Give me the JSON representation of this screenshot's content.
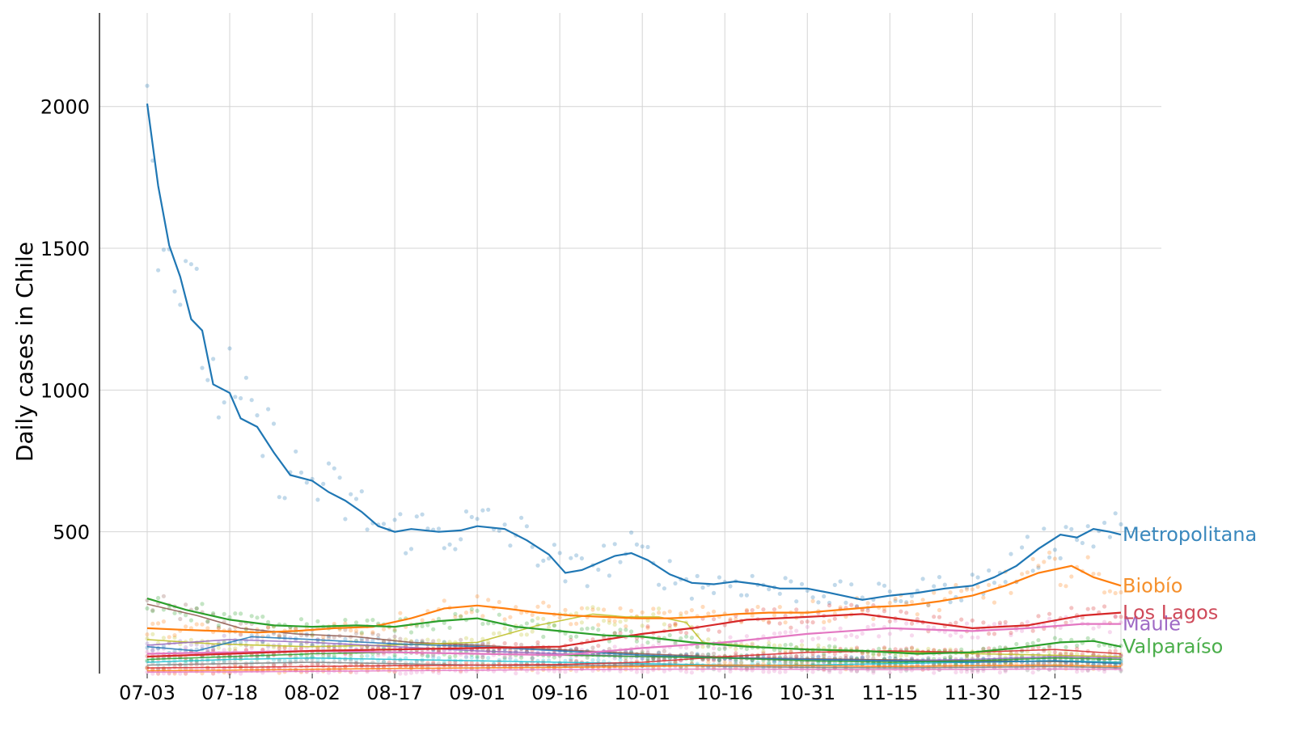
{
  "chart_data": {
    "type": "line",
    "ylabel": "Daily cases in Chile",
    "xlabel": "",
    "x_start": "07-03",
    "x_end": "12-27",
    "xticks": [
      "07-03",
      "07-18",
      "08-02",
      "08-17",
      "09-01",
      "09-16",
      "10-01",
      "10-16",
      "10-31",
      "11-15",
      "11-30",
      "12-15"
    ],
    "yticks": [
      500,
      1000,
      1500,
      2000
    ],
    "ylim": [
      0,
      2330
    ],
    "grid": true,
    "series": [
      {
        "name": "Metropolitana",
        "color": "#1f77b4",
        "label_color": "#3a88bd",
        "points": [
          [
            "07-03",
            2010
          ],
          [
            "07-05",
            1720
          ],
          [
            "07-07",
            1510
          ],
          [
            "07-09",
            1400
          ],
          [
            "07-11",
            1250
          ],
          [
            "07-13",
            1210
          ],
          [
            "07-15",
            1020
          ],
          [
            "07-18",
            990
          ],
          [
            "07-20",
            900
          ],
          [
            "07-23",
            870
          ],
          [
            "07-26",
            780
          ],
          [
            "07-29",
            700
          ],
          [
            "08-02",
            680
          ],
          [
            "08-05",
            640
          ],
          [
            "08-08",
            610
          ],
          [
            "08-11",
            570
          ],
          [
            "08-14",
            520
          ],
          [
            "08-17",
            500
          ],
          [
            "08-20",
            510
          ],
          [
            "08-25",
            500
          ],
          [
            "08-29",
            505
          ],
          [
            "09-01",
            520
          ],
          [
            "09-06",
            510
          ],
          [
            "09-10",
            470
          ],
          [
            "09-14",
            420
          ],
          [
            "09-17",
            355
          ],
          [
            "09-20",
            365
          ],
          [
            "09-23",
            390
          ],
          [
            "09-26",
            415
          ],
          [
            "09-29",
            425
          ],
          [
            "10-02",
            400
          ],
          [
            "10-06",
            350
          ],
          [
            "10-10",
            320
          ],
          [
            "10-14",
            315
          ],
          [
            "10-18",
            325
          ],
          [
            "10-22",
            315
          ],
          [
            "10-26",
            300
          ],
          [
            "10-31",
            300
          ],
          [
            "11-04",
            285
          ],
          [
            "11-10",
            260
          ],
          [
            "11-15",
            275
          ],
          [
            "11-20",
            285
          ],
          [
            "11-25",
            300
          ],
          [
            "11-30",
            310
          ],
          [
            "12-04",
            340
          ],
          [
            "12-08",
            380
          ],
          [
            "12-12",
            440
          ],
          [
            "12-16",
            490
          ],
          [
            "12-19",
            480
          ],
          [
            "12-22",
            510
          ],
          [
            "12-25",
            500
          ],
          [
            "12-27",
            490
          ]
        ]
      },
      {
        "name": "Biobío",
        "color": "#ff7f0e",
        "label_color": "#f5902c",
        "points": [
          [
            "07-03",
            160
          ],
          [
            "07-09",
            155
          ],
          [
            "07-16",
            150
          ],
          [
            "07-23",
            145
          ],
          [
            "07-30",
            150
          ],
          [
            "08-06",
            160
          ],
          [
            "08-13",
            165
          ],
          [
            "08-20",
            195
          ],
          [
            "08-26",
            230
          ],
          [
            "09-01",
            240
          ],
          [
            "09-06",
            230
          ],
          [
            "09-12",
            215
          ],
          [
            "09-18",
            205
          ],
          [
            "09-24",
            200
          ],
          [
            "09-30",
            195
          ],
          [
            "10-06",
            195
          ],
          [
            "10-12",
            200
          ],
          [
            "10-18",
            210
          ],
          [
            "10-24",
            215
          ],
          [
            "10-31",
            215
          ],
          [
            "11-06",
            225
          ],
          [
            "11-12",
            235
          ],
          [
            "11-18",
            240
          ],
          [
            "11-24",
            255
          ],
          [
            "11-30",
            275
          ],
          [
            "12-06",
            310
          ],
          [
            "12-12",
            355
          ],
          [
            "12-18",
            380
          ],
          [
            "12-22",
            340
          ],
          [
            "12-27",
            310
          ]
        ]
      },
      {
        "name": "Maule",
        "color": "#e377c2",
        "label_color": "#9f6ac5",
        "points": [
          [
            "07-03",
            70
          ],
          [
            "07-18",
            75
          ],
          [
            "08-02",
            80
          ],
          [
            "08-17",
            75
          ],
          [
            "09-01",
            70
          ],
          [
            "09-16",
            65
          ],
          [
            "10-01",
            90
          ],
          [
            "10-16",
            110
          ],
          [
            "10-31",
            140
          ],
          [
            "11-15",
            160
          ],
          [
            "11-30",
            150
          ],
          [
            "12-10",
            160
          ],
          [
            "12-20",
            175
          ],
          [
            "12-27",
            175
          ]
        ]
      },
      {
        "name": "Los Lagos",
        "color": "#d62728",
        "label_color": "#cf4a5a",
        "points": [
          [
            "07-03",
            60
          ],
          [
            "07-18",
            70
          ],
          [
            "08-02",
            80
          ],
          [
            "08-17",
            85
          ],
          [
            "09-01",
            90
          ],
          [
            "09-16",
            95
          ],
          [
            "10-01",
            140
          ],
          [
            "10-10",
            160
          ],
          [
            "10-20",
            190
          ],
          [
            "10-31",
            200
          ],
          [
            "11-10",
            210
          ],
          [
            "11-20",
            185
          ],
          [
            "11-30",
            160
          ],
          [
            "12-10",
            170
          ],
          [
            "12-20",
            205
          ],
          [
            "12-27",
            215
          ]
        ]
      },
      {
        "name": "Valparaíso",
        "color": "#2ca02c",
        "label_color": "#4aae4a",
        "points": [
          [
            "07-03",
            265
          ],
          [
            "07-10",
            225
          ],
          [
            "07-18",
            190
          ],
          [
            "07-26",
            170
          ],
          [
            "08-02",
            165
          ],
          [
            "08-10",
            170
          ],
          [
            "08-17",
            165
          ],
          [
            "08-25",
            185
          ],
          [
            "09-01",
            195
          ],
          [
            "09-08",
            165
          ],
          [
            "09-16",
            150
          ],
          [
            "09-24",
            135
          ],
          [
            "10-01",
            130
          ],
          [
            "10-10",
            110
          ],
          [
            "10-20",
            95
          ],
          [
            "10-31",
            85
          ],
          [
            "11-10",
            80
          ],
          [
            "11-20",
            70
          ],
          [
            "11-30",
            75
          ],
          [
            "12-08",
            90
          ],
          [
            "12-16",
            110
          ],
          [
            "12-22",
            115
          ],
          [
            "12-27",
            95
          ]
        ]
      },
      {
        "name": "",
        "color": "#8c564b",
        "points": [
          [
            "07-03",
            245
          ],
          [
            "07-12",
            205
          ],
          [
            "07-20",
            160
          ],
          [
            "07-30",
            140
          ],
          [
            "08-10",
            130
          ],
          [
            "08-20",
            110
          ],
          [
            "09-01",
            100
          ],
          [
            "09-15",
            85
          ],
          [
            "10-01",
            70
          ],
          [
            "10-20",
            55
          ],
          [
            "11-10",
            50
          ],
          [
            "12-01",
            45
          ],
          [
            "12-27",
            40
          ]
        ]
      },
      {
        "name": "",
        "color": "#bcbd22",
        "points": [
          [
            "07-03",
            120
          ],
          [
            "07-15",
            105
          ],
          [
            "08-01",
            95
          ],
          [
            "08-15",
            100
          ],
          [
            "09-01",
            110
          ],
          [
            "09-12",
            170
          ],
          [
            "09-22",
            210
          ],
          [
            "09-28",
            200
          ],
          [
            "10-04",
            200
          ],
          [
            "10-09",
            180
          ],
          [
            "10-12",
            110
          ],
          [
            "10-25",
            90
          ],
          [
            "11-10",
            80
          ],
          [
            "12-01",
            70
          ],
          [
            "12-27",
            60
          ]
        ]
      },
      {
        "name": "",
        "color": "#9467bd",
        "points": [
          [
            "07-03",
            100
          ],
          [
            "07-18",
            120
          ],
          [
            "08-02",
            110
          ],
          [
            "08-17",
            95
          ],
          [
            "09-01",
            80
          ],
          [
            "09-16",
            70
          ],
          [
            "10-01",
            60
          ],
          [
            "10-16",
            55
          ],
          [
            "10-31",
            50
          ],
          [
            "11-15",
            45
          ],
          [
            "11-30",
            50
          ],
          [
            "12-15",
            60
          ],
          [
            "12-27",
            55
          ]
        ]
      },
      {
        "name": "",
        "color": "#17becf",
        "points": [
          [
            "07-03",
            40
          ],
          [
            "07-18",
            50
          ],
          [
            "08-02",
            55
          ],
          [
            "08-17",
            50
          ],
          [
            "09-01",
            45
          ],
          [
            "09-16",
            40
          ],
          [
            "10-01",
            35
          ],
          [
            "10-16",
            30
          ],
          [
            "10-31",
            30
          ],
          [
            "11-15",
            35
          ],
          [
            "11-30",
            40
          ],
          [
            "12-15",
            45
          ],
          [
            "12-27",
            40
          ]
        ]
      },
      {
        "name": "",
        "color": "#1f77b4",
        "points": [
          [
            "07-03",
            95
          ],
          [
            "07-12",
            80
          ],
          [
            "07-22",
            130
          ],
          [
            "08-02",
            120
          ],
          [
            "08-17",
            105
          ],
          [
            "09-01",
            95
          ],
          [
            "09-16",
            80
          ],
          [
            "10-01",
            65
          ],
          [
            "10-16",
            55
          ],
          [
            "10-31",
            50
          ],
          [
            "11-15",
            45
          ],
          [
            "11-30",
            40
          ],
          [
            "12-15",
            45
          ],
          [
            "12-27",
            35
          ]
        ]
      },
      {
        "name": "",
        "color": "#7f7f7f",
        "points": [
          [
            "07-03",
            30
          ],
          [
            "07-18",
            35
          ],
          [
            "08-02",
            40
          ],
          [
            "08-17",
            35
          ],
          [
            "09-01",
            30
          ],
          [
            "09-16",
            28
          ],
          [
            "10-01",
            30
          ],
          [
            "10-16",
            25
          ],
          [
            "10-31",
            22
          ],
          [
            "11-15",
            20
          ],
          [
            "11-30",
            22
          ],
          [
            "12-15",
            25
          ],
          [
            "12-27",
            20
          ]
        ]
      },
      {
        "name": "",
        "color": "#d62728",
        "points": [
          [
            "07-03",
            20
          ],
          [
            "07-18",
            22
          ],
          [
            "08-02",
            25
          ],
          [
            "08-17",
            28
          ],
          [
            "09-01",
            30
          ],
          [
            "09-16",
            32
          ],
          [
            "10-01",
            40
          ],
          [
            "10-16",
            60
          ],
          [
            "10-31",
            75
          ],
          [
            "11-15",
            80
          ],
          [
            "11-30",
            75
          ],
          [
            "12-15",
            85
          ],
          [
            "12-27",
            70
          ]
        ]
      },
      {
        "name": "",
        "color": "#ff7f0e",
        "points": [
          [
            "07-03",
            10
          ],
          [
            "07-18",
            12
          ],
          [
            "08-02",
            15
          ],
          [
            "08-17",
            18
          ],
          [
            "09-01",
            20
          ],
          [
            "09-16",
            22
          ],
          [
            "10-01",
            25
          ],
          [
            "10-16",
            30
          ],
          [
            "10-31",
            28
          ],
          [
            "11-15",
            25
          ],
          [
            "11-30",
            28
          ],
          [
            "12-15",
            30
          ],
          [
            "12-27",
            25
          ]
        ]
      },
      {
        "name": "",
        "color": "#e377c2",
        "points": [
          [
            "07-03",
            5
          ],
          [
            "07-18",
            6
          ],
          [
            "08-02",
            8
          ],
          [
            "08-17",
            10
          ],
          [
            "09-01",
            12
          ],
          [
            "09-16",
            14
          ],
          [
            "10-01",
            15
          ],
          [
            "10-16",
            16
          ],
          [
            "10-31",
            15
          ],
          [
            "11-15",
            14
          ],
          [
            "11-30",
            15
          ],
          [
            "12-15",
            16
          ],
          [
            "12-27",
            15
          ]
        ]
      },
      {
        "name": "",
        "color": "#2ca02c",
        "points": [
          [
            "07-03",
            50
          ],
          [
            "07-18",
            60
          ],
          [
            "08-02",
            70
          ],
          [
            "08-17",
            75
          ],
          [
            "09-01",
            70
          ],
          [
            "09-16",
            65
          ],
          [
            "10-01",
            60
          ],
          [
            "10-16",
            55
          ],
          [
            "10-31",
            45
          ],
          [
            "11-15",
            40
          ],
          [
            "11-30",
            45
          ],
          [
            "12-15",
            55
          ],
          [
            "12-27",
            50
          ]
        ]
      }
    ]
  }
}
